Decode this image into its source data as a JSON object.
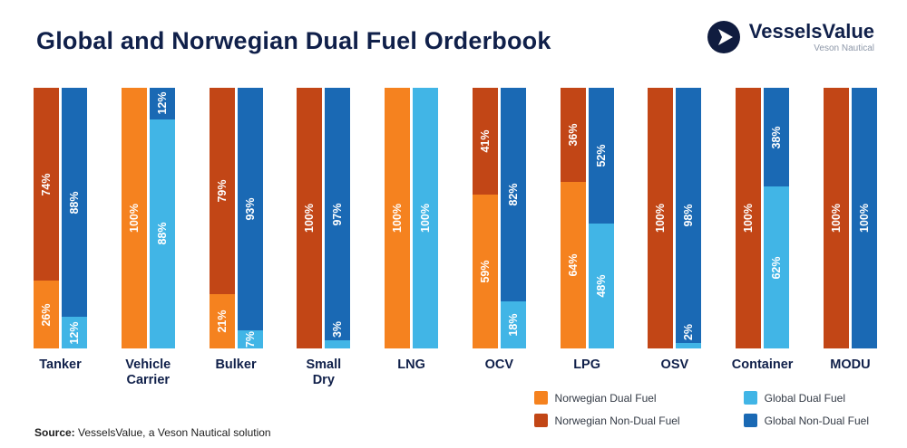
{
  "header": {
    "title": "Global and Norwegian Dual Fuel Orderbook",
    "logo": {
      "brand": "VesselsValue",
      "tagline": "Veson Nautical"
    }
  },
  "chart_data": {
    "type": "bar",
    "subtype": "paired-100%-stacked-columns",
    "title": "Global and Norwegian Dual Fuel Orderbook",
    "unit": "%",
    "ylim": [
      0,
      100
    ],
    "grid": false,
    "legend_position": "bottom-right",
    "value_labels": "inside-rotated-white",
    "categories": [
      "Tanker",
      "Vehicle\nCarrier",
      "Bulker",
      "Small\nDry",
      "LNG",
      "OCV",
      "LPG",
      "OSV",
      "Container",
      "MODU"
    ],
    "series": [
      {
        "name": "Norwegian Dual Fuel",
        "color": "#F5821F",
        "values": [
          26,
          100,
          21,
          0,
          100,
          59,
          64,
          0,
          0,
          0
        ]
      },
      {
        "name": "Norwegian Non-Dual Fuel",
        "color": "#C24616",
        "values": [
          74,
          0,
          79,
          100,
          0,
          41,
          36,
          100,
          100,
          100
        ]
      },
      {
        "name": "Global Dual Fuel",
        "color": "#41B5E6",
        "values": [
          12,
          88,
          7,
          3,
          100,
          18,
          48,
          2,
          62,
          0
        ]
      },
      {
        "name": "Global Non-Dual Fuel",
        "color": "#1A69B4",
        "values": [
          88,
          12,
          93,
          97,
          0,
          82,
          52,
          98,
          38,
          100
        ]
      }
    ]
  },
  "colors": {
    "title_navy": "#10204A",
    "logo_navy": "#101C3F",
    "tagline_gray": "#8D97A8"
  },
  "footer": {
    "source_label": "Source:",
    "source_text": " VesselsValue, a Veson Nautical solution"
  }
}
